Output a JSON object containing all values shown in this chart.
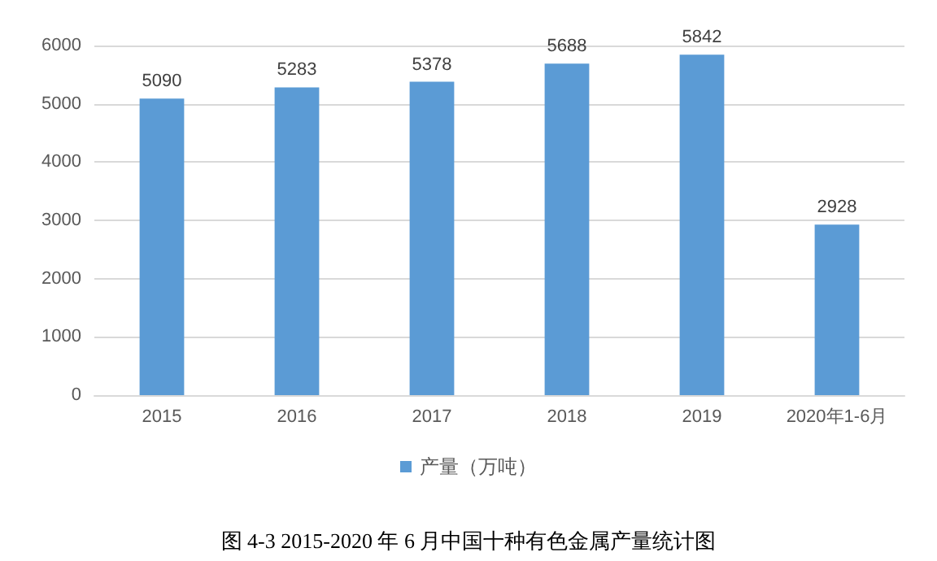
{
  "chart_data": {
    "type": "bar",
    "categories": [
      "2015",
      "2016",
      "2017",
      "2018",
      "2019",
      "2020年1-6月"
    ],
    "series": [
      {
        "name": "产量（万吨）",
        "color": "#5b9bd5",
        "values": [
          5090,
          5283,
          5378,
          5688,
          5842,
          2928
        ]
      }
    ],
    "ylim": [
      0,
      6000
    ],
    "yticks": [
      0,
      1000,
      2000,
      3000,
      4000,
      5000,
      6000
    ],
    "grid": "y",
    "legend": "bottom",
    "data_labels": true,
    "annotations": [
      "图 4-3 2015-2020 年 6 月中国十种有色金属产量统计图"
    ]
  }
}
